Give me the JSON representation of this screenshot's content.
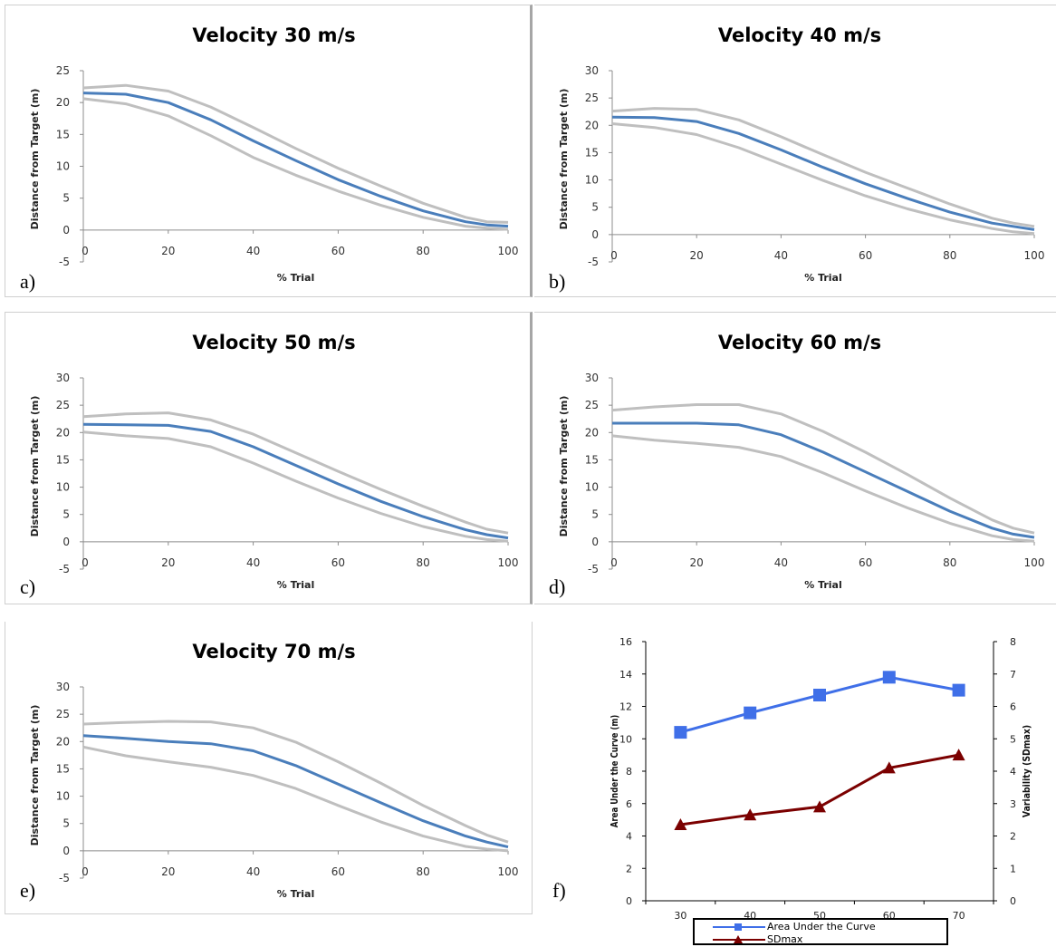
{
  "panel_letters": [
    "a)",
    "b)",
    "c)",
    "d)",
    "e)",
    "f)"
  ],
  "chart_data": [
    {
      "type": "line",
      "title": "Velocity 30 m/s",
      "xlabel": "% Trial",
      "ylabel": "Distance from Target (m)",
      "xlim": [
        0,
        100
      ],
      "ylim": [
        -5,
        25
      ],
      "yticks": [
        -5,
        0,
        5,
        10,
        15,
        20,
        25
      ],
      "xticks": [
        0,
        20,
        40,
        60,
        80,
        100
      ],
      "x": [
        0,
        10,
        20,
        30,
        40,
        50,
        60,
        70,
        80,
        90,
        95,
        100
      ],
      "series": [
        {
          "role": "upper",
          "color": "#bfbfbf",
          "values": [
            22.3,
            22.7,
            21.8,
            19.3,
            16.1,
            12.8,
            9.7,
            6.9,
            4.2,
            2.0,
            1.3,
            1.2
          ]
        },
        {
          "role": "mean",
          "color": "#4a7ebb",
          "values": [
            21.5,
            21.3,
            20.0,
            17.3,
            14.0,
            10.9,
            7.9,
            5.3,
            3.0,
            1.3,
            0.8,
            0.6
          ]
        },
        {
          "role": "lower",
          "color": "#bfbfbf",
          "values": [
            20.6,
            19.8,
            17.9,
            14.8,
            11.4,
            8.6,
            6.1,
            3.9,
            2.0,
            0.6,
            0.3,
            0.1
          ]
        }
      ]
    },
    {
      "type": "line",
      "title": "Velocity 40 m/s",
      "xlabel": "% Trial",
      "ylabel": "Distance from Target (m)",
      "xlim": [
        0,
        100
      ],
      "ylim": [
        -5,
        30
      ],
      "yticks": [
        -5,
        0,
        5,
        10,
        15,
        20,
        25,
        30
      ],
      "xticks": [
        0,
        20,
        40,
        60,
        80,
        100
      ],
      "x": [
        0,
        10,
        20,
        30,
        40,
        50,
        60,
        70,
        80,
        90,
        95,
        100
      ],
      "series": [
        {
          "role": "upper",
          "color": "#bfbfbf",
          "values": [
            22.6,
            23.1,
            22.9,
            21.0,
            17.9,
            14.6,
            11.4,
            8.5,
            5.6,
            3.0,
            2.1,
            1.5
          ]
        },
        {
          "role": "mean",
          "color": "#4a7ebb",
          "values": [
            21.5,
            21.4,
            20.7,
            18.5,
            15.5,
            12.3,
            9.3,
            6.6,
            4.1,
            2.1,
            1.5,
            0.9
          ]
        },
        {
          "role": "lower",
          "color": "#bfbfbf",
          "values": [
            20.3,
            19.6,
            18.3,
            15.9,
            12.9,
            9.9,
            7.1,
            4.7,
            2.7,
            1.1,
            0.5,
            0.2
          ]
        }
      ]
    },
    {
      "type": "line",
      "title": "Velocity 50 m/s",
      "xlabel": "% Trial",
      "ylabel": "Distance from Target (m)",
      "xlim": [
        0,
        100
      ],
      "ylim": [
        -5,
        30
      ],
      "yticks": [
        -5,
        0,
        5,
        10,
        15,
        20,
        25,
        30
      ],
      "xticks": [
        0,
        20,
        40,
        60,
        80,
        100
      ],
      "x": [
        0,
        10,
        20,
        30,
        40,
        50,
        60,
        70,
        80,
        90,
        95,
        100
      ],
      "series": [
        {
          "role": "upper",
          "color": "#bfbfbf",
          "values": [
            22.9,
            23.4,
            23.6,
            22.3,
            19.7,
            16.3,
            12.9,
            9.6,
            6.5,
            3.6,
            2.3,
            1.6
          ]
        },
        {
          "role": "mean",
          "color": "#4a7ebb",
          "values": [
            21.5,
            21.4,
            21.3,
            20.2,
            17.4,
            14.0,
            10.6,
            7.4,
            4.6,
            2.2,
            1.3,
            0.7
          ]
        },
        {
          "role": "lower",
          "color": "#bfbfbf",
          "values": [
            20.1,
            19.4,
            18.9,
            17.4,
            14.4,
            11.1,
            8.0,
            5.2,
            2.8,
            1.0,
            0.4,
            0.1
          ]
        }
      ]
    },
    {
      "type": "line",
      "title": "Velocity 60 m/s",
      "xlabel": "% Trial",
      "ylabel": "Distance from Target (m)",
      "xlim": [
        0,
        100
      ],
      "ylim": [
        -5,
        30
      ],
      "yticks": [
        -5,
        0,
        5,
        10,
        15,
        20,
        25,
        30
      ],
      "xticks": [
        0,
        20,
        40,
        60,
        80,
        100
      ],
      "x": [
        0,
        10,
        20,
        30,
        40,
        50,
        60,
        70,
        80,
        90,
        95,
        100
      ],
      "series": [
        {
          "role": "upper",
          "color": "#bfbfbf",
          "values": [
            24.1,
            24.7,
            25.1,
            25.1,
            23.4,
            20.2,
            16.4,
            12.3,
            8.0,
            4.0,
            2.5,
            1.6
          ]
        },
        {
          "role": "mean",
          "color": "#4a7ebb",
          "values": [
            21.7,
            21.7,
            21.7,
            21.4,
            19.6,
            16.4,
            12.8,
            9.2,
            5.6,
            2.5,
            1.4,
            0.8
          ]
        },
        {
          "role": "lower",
          "color": "#bfbfbf",
          "values": [
            19.4,
            18.6,
            18.0,
            17.3,
            15.6,
            12.6,
            9.3,
            6.2,
            3.4,
            1.1,
            0.4,
            0.1
          ]
        }
      ]
    },
    {
      "type": "line",
      "title": "Velocity 70 m/s",
      "xlabel": "% Trial",
      "ylabel": "Distance from Target (m)",
      "xlim": [
        0,
        100
      ],
      "ylim": [
        -5,
        30
      ],
      "yticks": [
        -5,
        0,
        5,
        10,
        15,
        20,
        25,
        30
      ],
      "xticks": [
        0,
        20,
        40,
        60,
        80,
        100
      ],
      "x": [
        0,
        10,
        20,
        30,
        40,
        50,
        60,
        70,
        80,
        90,
        95,
        100
      ],
      "series": [
        {
          "role": "upper",
          "color": "#bfbfbf",
          "values": [
            23.2,
            23.5,
            23.7,
            23.6,
            22.5,
            19.9,
            16.3,
            12.4,
            8.3,
            4.6,
            2.9,
            1.6
          ]
        },
        {
          "role": "mean",
          "color": "#4a7ebb",
          "values": [
            21.1,
            20.6,
            20.0,
            19.6,
            18.3,
            15.6,
            12.2,
            8.8,
            5.5,
            2.7,
            1.6,
            0.7
          ]
        },
        {
          "role": "lower",
          "color": "#bfbfbf",
          "values": [
            19.0,
            17.4,
            16.3,
            15.3,
            13.8,
            11.4,
            8.3,
            5.3,
            2.7,
            0.8,
            0.3,
            0.0
          ]
        }
      ]
    },
    {
      "type": "line",
      "title": "",
      "xlabel": "Velocity m/s",
      "ylabel": "Area Under the Curve (m)",
      "y2label": "Variability (SDmax)",
      "categories": [
        "30",
        "40",
        "50",
        "60",
        "70"
      ],
      "ylim": [
        0,
        16
      ],
      "yticks": [
        0,
        2,
        4,
        6,
        8,
        10,
        12,
        14,
        16
      ],
      "y2lim": [
        0,
        8
      ],
      "y2ticks": [
        0,
        1,
        2,
        3,
        4,
        5,
        6,
        7,
        8
      ],
      "legend_position": "bottom",
      "series": [
        {
          "name": "Area Under the Curve",
          "axis": "left",
          "color": "#3f6fe8",
          "marker": "square",
          "values": [
            10.4,
            11.6,
            12.7,
            13.8,
            13.0
          ]
        },
        {
          "name": "SDmax",
          "axis": "right",
          "color": "#7b0000",
          "marker": "triangle",
          "values": [
            2.35,
            2.65,
            2.9,
            4.1,
            4.5
          ]
        }
      ]
    }
  ]
}
